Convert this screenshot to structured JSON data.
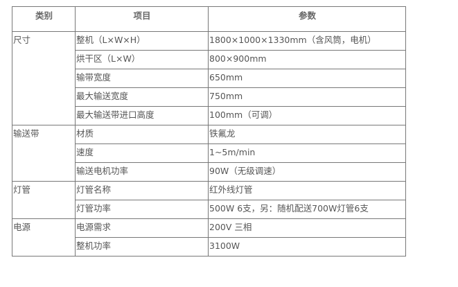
{
  "headers": [
    "类别",
    "项目",
    "参数"
  ],
  "groups": [
    {
      "category": "尺寸",
      "rows": [
        [
          "整机（L×W×H）",
          "1800×1000×1330mm（含风筒，电机）"
        ],
        [
          "烘干区（L×W）",
          "800×900mm"
        ],
        [
          "输带宽度",
          "650mm"
        ],
        [
          "最大输送宽度",
          "750mm"
        ],
        [
          "最大输送带进口高度",
          "100mm（可调）"
        ]
      ]
    },
    {
      "category": "输送带",
      "rows": [
        [
          "材质",
          "铁氟龙"
        ],
        [
          "速度",
          "1~5m/min"
        ],
        [
          "输送电机功率",
          "90W（无级调速）"
        ]
      ]
    },
    {
      "category": "灯管",
      "rows": [
        [
          "灯管名称",
          "红外线灯管"
        ],
        [
          "灯管功率",
          "500W  6支，另：随机配送700W灯管6支"
        ]
      ]
    },
    {
      "category": "电源",
      "rows": [
        [
          "电源需求",
          "200V 三相"
        ],
        [
          "整机功率",
          "3100W"
        ]
      ]
    }
  ]
}
